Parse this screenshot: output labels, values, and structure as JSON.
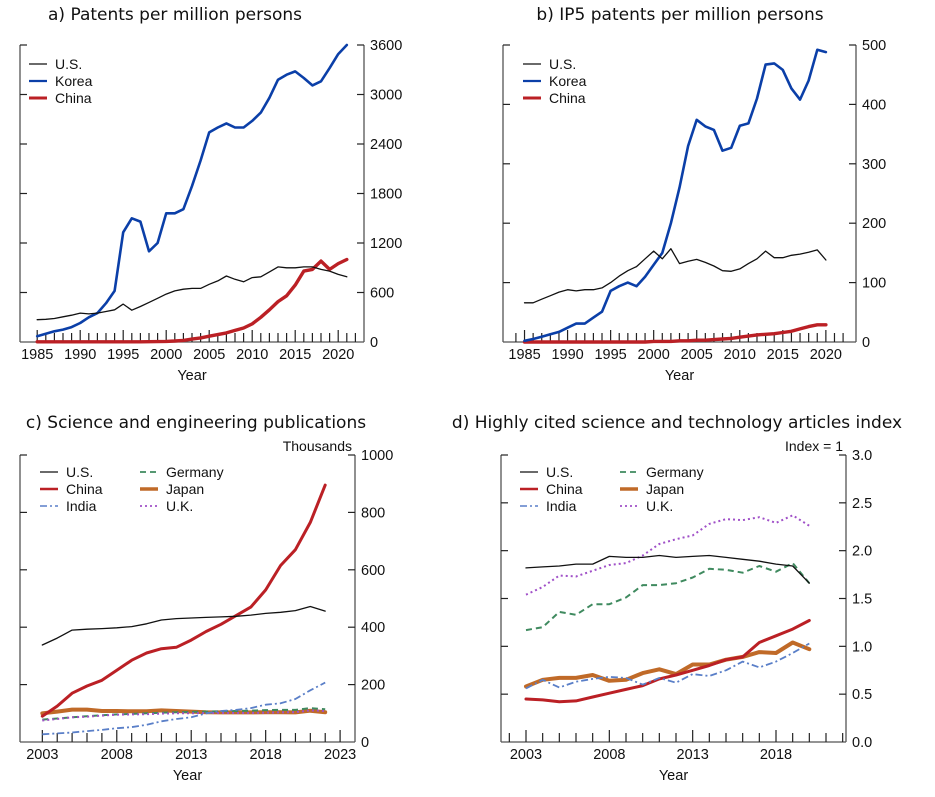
{
  "colors": {
    "us": "#111111",
    "korea": "#0b3fa8",
    "china": "#bb2025",
    "india": "#5a7fc8",
    "germany": "#3f8a5f",
    "japan": "#c06a28",
    "uk": "#a050c8"
  },
  "chart_data": [
    {
      "id": "a",
      "type": "line",
      "title": "a) Patents per million persons",
      "xlabel": "Year",
      "ylabel": "",
      "unit_label": "",
      "xlim": [
        1983,
        2023
      ],
      "ylim": [
        0,
        3600
      ],
      "xticks": [
        1985,
        1990,
        1995,
        2000,
        2005,
        2010,
        2015,
        2020
      ],
      "minor_xticks_every": 1,
      "minor_xticks_range": [
        1985,
        2022
      ],
      "yticks": [
        0,
        600,
        1200,
        1800,
        2400,
        3000,
        3600
      ],
      "ytick_labels": [
        "0",
        "600",
        "1200",
        "1800",
        "2400",
        "3000",
        "3600"
      ],
      "legend_position": "top-left",
      "legend_columns": 1,
      "grid": false,
      "x": [
        1985,
        1986,
        1987,
        1988,
        1989,
        1990,
        1991,
        1992,
        1993,
        1994,
        1995,
        1996,
        1997,
        1998,
        1999,
        2000,
        2001,
        2002,
        2003,
        2004,
        2005,
        2006,
        2007,
        2008,
        2009,
        2010,
        2011,
        2012,
        2013,
        2014,
        2015,
        2016,
        2017,
        2018,
        2019,
        2020,
        2021
      ],
      "series": [
        {
          "name": "U.S.",
          "key": "us",
          "width": 1.3,
          "dash": "",
          "values": [
            270,
            275,
            285,
            305,
            325,
            350,
            340,
            350,
            370,
            390,
            460,
            385,
            430,
            480,
            530,
            580,
            620,
            640,
            650,
            650,
            700,
            740,
            800,
            760,
            730,
            780,
            790,
            850,
            910,
            900,
            900,
            910,
            910,
            880,
            860,
            820,
            790
          ]
        },
        {
          "name": "Korea",
          "key": "korea",
          "width": 2.6,
          "dash": "",
          "values": [
            70,
            100,
            130,
            150,
            180,
            230,
            300,
            350,
            470,
            620,
            1330,
            1500,
            1460,
            1100,
            1200,
            1560,
            1560,
            1610,
            1890,
            2200,
            2540,
            2600,
            2650,
            2600,
            2600,
            2680,
            2780,
            2960,
            3180,
            3240,
            3280,
            3200,
            3110,
            3160,
            3320,
            3490,
            3600
          ]
        },
        {
          "name": "China",
          "key": "china",
          "width": 3.4,
          "dash": "",
          "values": [
            2,
            2,
            2,
            2,
            2,
            2,
            2,
            2,
            2,
            2,
            3,
            3,
            3,
            4,
            5,
            7,
            12,
            20,
            35,
            50,
            70,
            90,
            110,
            140,
            170,
            220,
            300,
            390,
            490,
            560,
            690,
            860,
            880,
            980,
            880,
            950,
            1000
          ]
        }
      ]
    },
    {
      "id": "b",
      "type": "line",
      "title": "b) IP5 patents per million persons",
      "xlabel": "Year",
      "ylabel": "",
      "unit_label": "",
      "xlim": [
        1982.5,
        2023.5
      ],
      "ylim": [
        0,
        500
      ],
      "xticks": [
        1985,
        1990,
        1995,
        2000,
        2005,
        2010,
        2015,
        2020
      ],
      "minor_xticks_every": 1,
      "minor_xticks_range": [
        1984,
        2022
      ],
      "yticks": [
        0,
        100,
        200,
        300,
        400,
        500
      ],
      "ytick_labels": [
        "0",
        "100",
        "200",
        "300",
        "400",
        "500"
      ],
      "legend_position": "top-left",
      "legend_columns": 1,
      "grid": false,
      "x": [
        1985,
        1986,
        1987,
        1988,
        1989,
        1990,
        1991,
        1992,
        1993,
        1994,
        1995,
        1996,
        1997,
        1998,
        1999,
        2000,
        2001,
        2002,
        2003,
        2004,
        2005,
        2006,
        2007,
        2008,
        2009,
        2010,
        2011,
        2012,
        2013,
        2014,
        2015,
        2016,
        2017,
        2018,
        2019,
        2020
      ],
      "series": [
        {
          "name": "U.S.",
          "key": "us",
          "width": 1.3,
          "dash": "",
          "values": [
            66,
            66,
            72,
            78,
            84,
            88,
            86,
            88,
            88,
            91,
            100,
            111,
            120,
            127,
            140,
            153,
            140,
            157,
            132,
            136,
            139,
            134,
            128,
            120,
            119,
            123,
            132,
            140,
            153,
            142,
            142,
            146,
            148,
            151,
            155,
            138
          ]
        },
        {
          "name": "Korea",
          "key": "korea",
          "width": 2.6,
          "dash": "",
          "values": [
            2,
            5,
            9,
            13,
            17,
            24,
            31,
            31,
            41,
            51,
            86,
            94,
            100,
            94,
            110,
            130,
            150,
            200,
            260,
            330,
            374,
            363,
            357,
            322,
            327,
            364,
            368,
            410,
            467,
            469,
            458,
            427,
            408,
            440,
            492,
            488
          ]
        },
        {
          "name": "China",
          "key": "china",
          "width": 3.4,
          "dash": "",
          "values": [
            0,
            0,
            0,
            0,
            0,
            0,
            0,
            0,
            0,
            0,
            0,
            0,
            0,
            0,
            0,
            1,
            1,
            1,
            2,
            2,
            3,
            3,
            4,
            5,
            6,
            8,
            10,
            12,
            13,
            14,
            16,
            18,
            22,
            26,
            29,
            29
          ]
        }
      ]
    },
    {
      "id": "c",
      "type": "line",
      "title": "c) Science and engineering publications",
      "xlabel": "Year",
      "ylabel": "",
      "unit_label": "Thousands",
      "xlim": [
        2001.5,
        2024
      ],
      "ylim": [
        0,
        1000
      ],
      "xticks": [
        2003,
        2008,
        2013,
        2018,
        2023
      ],
      "minor_xticks_every": 1,
      "minor_xticks_range": [
        2003,
        2023
      ],
      "yticks": [
        0,
        200,
        400,
        600,
        800,
        1000
      ],
      "ytick_labels": [
        "0",
        "200",
        "400",
        "600",
        "800",
        "1000"
      ],
      "legend_position": "top-left",
      "legend_columns": 2,
      "grid": false,
      "x": [
        2003,
        2004,
        2005,
        2006,
        2007,
        2008,
        2009,
        2010,
        2011,
        2012,
        2013,
        2014,
        2015,
        2016,
        2017,
        2018,
        2019,
        2020,
        2021,
        2022
      ],
      "series": [
        {
          "name": "U.S.",
          "key": "us",
          "width": 1.3,
          "dash": "",
          "values": [
            338,
            362,
            390,
            393,
            395,
            398,
            402,
            412,
            425,
            430,
            432,
            434,
            436,
            438,
            442,
            448,
            452,
            458,
            472,
            456
          ]
        },
        {
          "name": "China",
          "key": "china",
          "width": 3.0,
          "dash": "",
          "values": [
            90,
            125,
            170,
            195,
            215,
            250,
            285,
            310,
            325,
            330,
            355,
            385,
            410,
            440,
            470,
            530,
            615,
            670,
            765,
            895
          ]
        },
        {
          "name": "India",
          "key": "india",
          "width": 1.8,
          "dash": "7 3 2 3",
          "values": [
            27,
            30,
            33,
            38,
            42,
            48,
            52,
            60,
            72,
            80,
            86,
            100,
            108,
            112,
            118,
            130,
            135,
            150,
            180,
            207
          ]
        },
        {
          "name": "Germany",
          "key": "germany",
          "width": 2.0,
          "dash": "6 4",
          "values": [
            78,
            82,
            86,
            90,
            93,
            96,
            98,
            100,
            102,
            104,
            105,
            106,
            107,
            108,
            109,
            111,
            112,
            112,
            118,
            114
          ]
        },
        {
          "name": "Japan",
          "key": "japan",
          "width": 4.0,
          "dash": "",
          "values": [
            100,
            106,
            113,
            113,
            108,
            108,
            107,
            107,
            110,
            108,
            106,
            104,
            103,
            103,
            103,
            104,
            104,
            103,
            109,
            104
          ]
        },
        {
          "name": "U.K.",
          "key": "uk",
          "width": 2.0,
          "dash": "2 3",
          "values": [
            75,
            80,
            86,
            88,
            92,
            95,
            96,
            97,
            99,
            100,
            100,
            101,
            101,
            101,
            101,
            102,
            103,
            104,
            110,
            108
          ]
        }
      ]
    },
    {
      "id": "d",
      "type": "line",
      "title": "d) Highly cited science and technology articles index",
      "xlabel": "Year",
      "ylabel": "",
      "unit_label": "Index = 1",
      "xlim": [
        2001.5,
        2022.2
      ],
      "ylim": [
        0,
        3.0
      ],
      "xticks": [
        2003,
        2008,
        2013,
        2018
      ],
      "minor_xticks_every": 1,
      "minor_xticks_range": [
        2002,
        2022
      ],
      "yticks": [
        0,
        0.5,
        1.0,
        1.5,
        2.0,
        2.5,
        3.0
      ],
      "ytick_labels": [
        "0.0",
        "0.5",
        "1.0",
        "1.5",
        "2.0",
        "2.5",
        "3.0"
      ],
      "legend_position": "top-left",
      "legend_columns": 2,
      "grid": false,
      "x": [
        2003,
        2004,
        2005,
        2006,
        2007,
        2008,
        2009,
        2010,
        2011,
        2012,
        2013,
        2014,
        2015,
        2016,
        2017,
        2018,
        2019,
        2020
      ],
      "series": [
        {
          "name": "U.S.",
          "key": "us",
          "width": 1.3,
          "dash": "",
          "values": [
            1.82,
            1.83,
            1.84,
            1.86,
            1.86,
            1.94,
            1.93,
            1.93,
            1.95,
            1.93,
            1.94,
            1.95,
            1.93,
            1.91,
            1.89,
            1.86,
            1.84,
            1.66
          ]
        },
        {
          "name": "China",
          "key": "china",
          "width": 3.0,
          "dash": "",
          "values": [
            0.45,
            0.44,
            0.42,
            0.43,
            0.47,
            0.51,
            0.55,
            0.59,
            0.66,
            0.7,
            0.75,
            0.8,
            0.86,
            0.89,
            1.04,
            1.11,
            1.18,
            1.27
          ]
        },
        {
          "name": "India",
          "key": "india",
          "width": 1.8,
          "dash": "7 3 2 3",
          "values": [
            0.56,
            0.65,
            0.57,
            0.63,
            0.66,
            0.68,
            0.67,
            0.6,
            0.67,
            0.62,
            0.71,
            0.69,
            0.75,
            0.84,
            0.78,
            0.84,
            0.93,
            1.03
          ]
        },
        {
          "name": "Germany",
          "key": "germany",
          "width": 2.0,
          "dash": "6 4",
          "values": [
            1.17,
            1.2,
            1.36,
            1.33,
            1.44,
            1.44,
            1.51,
            1.64,
            1.64,
            1.66,
            1.72,
            1.81,
            1.8,
            1.77,
            1.84,
            1.78,
            1.87,
            1.66
          ]
        },
        {
          "name": "Japan",
          "key": "japan",
          "width": 4.0,
          "dash": "",
          "values": [
            0.58,
            0.65,
            0.67,
            0.67,
            0.7,
            0.64,
            0.65,
            0.72,
            0.76,
            0.71,
            0.81,
            0.81,
            0.86,
            0.89,
            0.94,
            0.93,
            1.04,
            0.97
          ]
        },
        {
          "name": "U.K.",
          "key": "uk",
          "width": 2.0,
          "dash": "2 3",
          "values": [
            1.54,
            1.62,
            1.74,
            1.73,
            1.79,
            1.85,
            1.87,
            1.95,
            2.07,
            2.12,
            2.16,
            2.28,
            2.33,
            2.32,
            2.35,
            2.29,
            2.37,
            2.26
          ]
        }
      ]
    }
  ]
}
